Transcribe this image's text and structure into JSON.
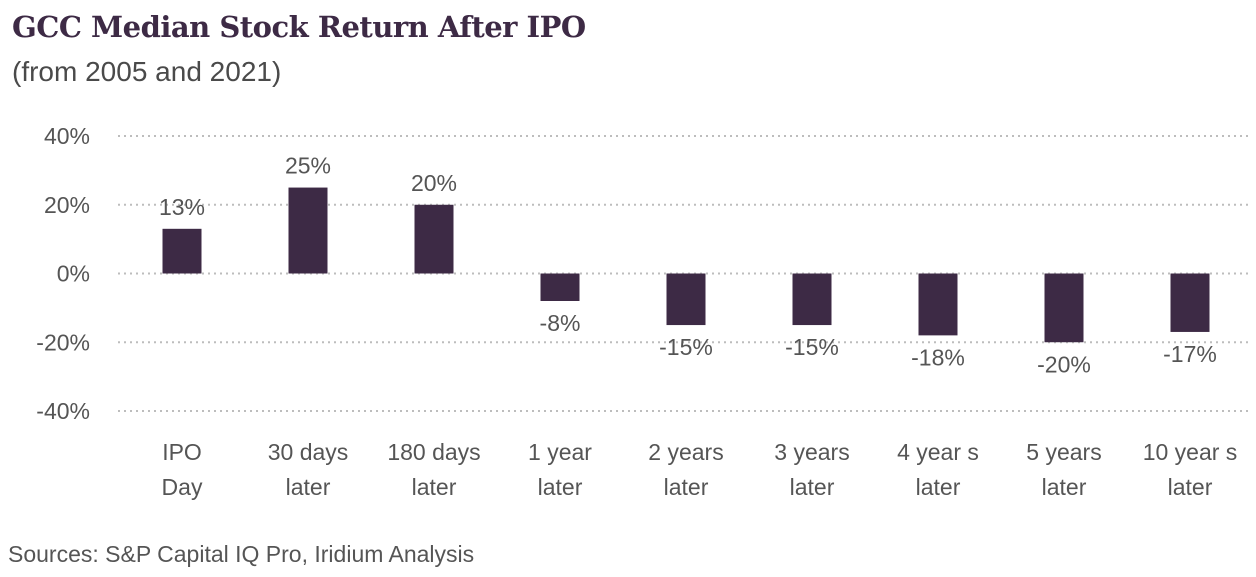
{
  "chart_data": {
    "type": "bar",
    "title": "GCC Median Stock Return After IPO",
    "subtitle": "(from 2005 and 2021)",
    "categories": [
      [
        "IPO",
        "Day"
      ],
      [
        "30 days",
        "later"
      ],
      [
        "180 days",
        "later"
      ],
      [
        "1 year",
        "later"
      ],
      [
        "2 years",
        "later"
      ],
      [
        "3 years",
        "later"
      ],
      [
        "4 year s",
        "later"
      ],
      [
        "5 years",
        "later"
      ],
      [
        "10 year s",
        "later"
      ]
    ],
    "values": [
      13,
      25,
      20,
      -8,
      -15,
      -15,
      -18,
      -20,
      -17
    ],
    "data_labels": [
      "13%",
      "25%",
      "20%",
      "-8%",
      "-15%",
      "-15%",
      "-18%",
      "-20%",
      "-17%"
    ],
    "y_ticks": [
      40,
      20,
      0,
      -20,
      -40
    ],
    "y_tick_labels": [
      "40%",
      "20%",
      "0%",
      "-20%",
      "-40%"
    ],
    "ylim": [
      -40,
      40
    ],
    "xlabel": "",
    "ylabel": "",
    "grid": true,
    "bar_color": "#3d2a45",
    "source": "Sources: S&P Capital IQ Pro, Iridium Analysis"
  }
}
